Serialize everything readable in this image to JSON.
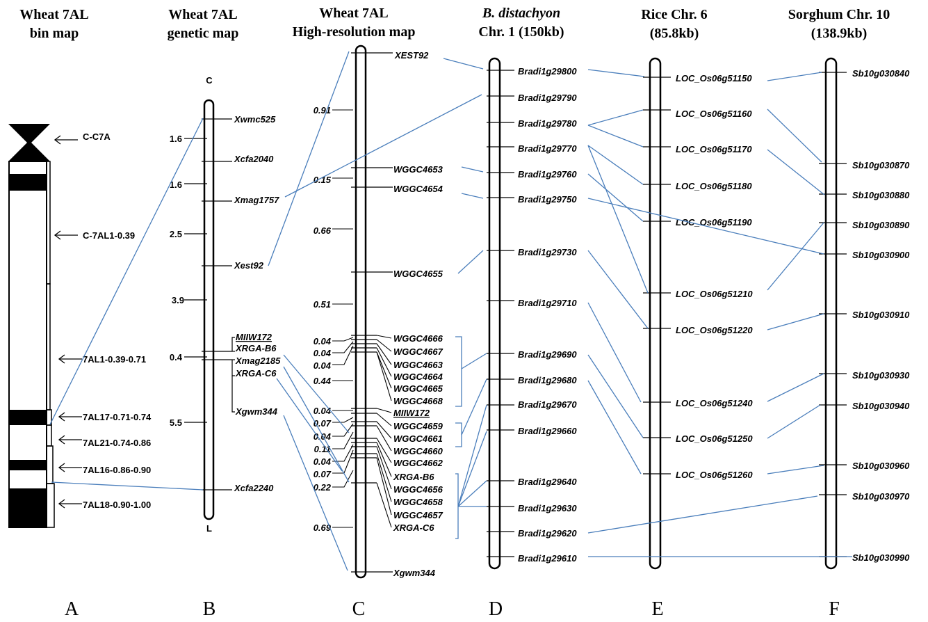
{
  "columns": {
    "A": {
      "title1": "Wheat 7AL",
      "title2": "bin map",
      "letter": "A"
    },
    "B": {
      "title1": "Wheat 7AL",
      "title2": "genetic map",
      "letter": "B",
      "top": "C",
      "bottom": "L"
    },
    "C": {
      "title1": "Wheat 7AL",
      "title2": "High-resolution map",
      "letter": "C"
    },
    "D": {
      "title1": "B. distachyon",
      "title2": "Chr. 1 (150kb)",
      "letter": "D"
    },
    "E": {
      "title1": "Rice Chr. 6",
      "title2": "(85.8kb)",
      "letter": "E"
    },
    "F": {
      "title1": "Sorghum Chr. 10",
      "title2": "(138.9kb)",
      "letter": "F"
    }
  },
  "bin_labels": [
    "C-C7A",
    "C-7AL1-0.39",
    "7AL1-0.39-0.71",
    "7AL17-0.71-0.74",
    "7AL21-0.74-0.86",
    "7AL16-0.86-0.90",
    "7AL18-0.90-1.00"
  ],
  "genetic_markers": [
    "Xwmc525",
    "Xcfa2040",
    "Xmag1757",
    "Xest92",
    "MIIW172",
    "XRGA-B6",
    "Xmag2185",
    "XRGA-C6",
    "Xgwm344",
    "Xcfa2240"
  ],
  "genetic_distances": [
    "1.6",
    "1.6",
    "2.5",
    "3.9",
    "0.4",
    "5.5"
  ],
  "hr_markers": [
    "XEST92",
    "WGGC4653",
    "WGGC4654",
    "WGGC4655",
    "WGGC4666",
    "WGGC4667",
    "WGGC4663",
    "WGGC4664",
    "WGGC4665",
    "WGGC4668",
    "MIIW172",
    "WGGC4659",
    "WGGC4661",
    "WGGC4660",
    "WGGC4662",
    "XRGA-B6",
    "WGGC4656",
    "WGGC4658",
    "WGGC4657",
    "XRGA-C6",
    "Xgwm344"
  ],
  "hr_distances": [
    "0.91",
    "0.15",
    "0.66",
    "0.51",
    "0.04",
    "0.04",
    "0.04",
    "0.44",
    "0.04",
    "0.07",
    "0.04",
    "0.11",
    "0.04",
    "0.07",
    "0.22",
    "0.69"
  ],
  "brachy_genes": [
    "Bradi1g29800",
    "Bradi1g29790",
    "Bradi1g29780",
    "Bradi1g29770",
    "Bradi1g29760",
    "Bradi1g29750",
    "Bradi1g29730",
    "Bradi1g29710",
    "Bradi1g29690",
    "Bradi1g29680",
    "Bradi1g29670",
    "Bradi1g29660",
    "Bradi1g29640",
    "Bradi1g29630",
    "Bradi1g29620",
    "Bradi1g29610"
  ],
  "rice_genes": [
    "LOC_Os06g51150",
    "LOC_Os06g51160",
    "LOC_Os06g51170",
    "LOC_Os06g51180",
    "LOC_Os06g51190",
    "LOC_Os06g51210",
    "LOC_Os06g51220",
    "LOC_Os06g51240",
    "LOC_Os06g51250",
    "LOC_Os06g51260"
  ],
  "sorghum_genes": [
    "Sb10g030840",
    "Sb10g030870",
    "Sb10g030880",
    "Sb10g030890",
    "Sb10g030900",
    "Sb10g030910",
    "Sb10g030930",
    "Sb10g030940",
    "Sb10g030960",
    "Sb10g030970",
    "Sb10g030990"
  ],
  "colors": {
    "link": "#4a7ebb",
    "highlight": "#e8131b",
    "green_gene": "#1a9a4a",
    "green_dist": "#2d5a1e"
  }
}
